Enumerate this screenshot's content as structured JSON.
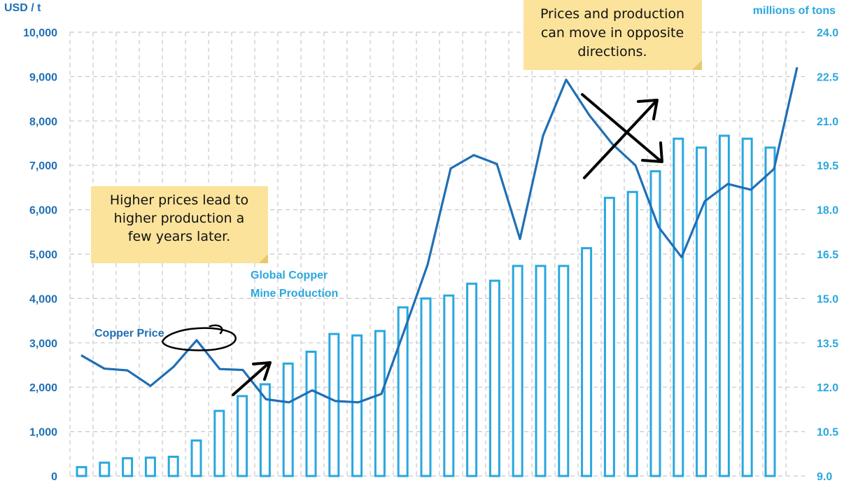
{
  "colors": {
    "price_line": "#1f6fb5",
    "production_bar": "#2aa7df",
    "grid": "#c8c8c8",
    "note_bg": "#fbe39b",
    "arrow": "#000000"
  },
  "chart_data": {
    "type": "bar",
    "ylabel_left": "USD / t",
    "ylabel_right": "millions of tons",
    "left_ticks": [
      "0",
      "1,000",
      "2,000",
      "3,000",
      "4,000",
      "5,000",
      "6,000",
      "7,000",
      "8,000",
      "9,000",
      "10,000"
    ],
    "right_ticks": [
      "9.0",
      "10.5",
      "12.0",
      "13.5",
      "15.0",
      "16.5",
      "18.0",
      "19.5",
      "21.0",
      "22.5",
      "24.0"
    ],
    "ylim_left": [
      0,
      10000
    ],
    "ylim_right": [
      9.0,
      24.0
    ],
    "grid": true,
    "series": [
      {
        "name": "Global Copper Mine Production",
        "type": "bar",
        "axis": "right",
        "values": [
          9.3,
          9.45,
          9.6,
          9.62,
          9.65,
          10.2,
          11.2,
          11.7,
          12.1,
          12.8,
          13.2,
          13.8,
          13.75,
          13.9,
          14.7,
          15.0,
          15.1,
          15.5,
          15.6,
          16.1,
          16.1,
          16.1,
          16.7,
          18.4,
          18.6,
          19.3,
          20.4,
          20.1,
          20.5,
          20.4,
          20.1
        ]
      },
      {
        "name": "Copper Price",
        "type": "line",
        "axis": "left",
        "values": [
          2720,
          2420,
          2380,
          2030,
          2460,
          3060,
          2410,
          2390,
          1730,
          1660,
          1930,
          1690,
          1660,
          1850,
          3290,
          4760,
          6930,
          7230,
          7030,
          5340,
          7670,
          8930,
          8130,
          7480,
          7000,
          5610,
          4930,
          6190,
          6580,
          6450,
          6920,
          9210
        ]
      }
    ],
    "annotations": {
      "series_label_price": "Copper Price",
      "series_label_production_line1": "Global Copper",
      "series_label_production_line2": "Mine Production",
      "note_left": [
        "Higher prices lead to",
        "higher production a",
        "few years later."
      ],
      "note_right": [
        "Prices and production",
        "can move in opposite",
        "directions."
      ]
    }
  }
}
